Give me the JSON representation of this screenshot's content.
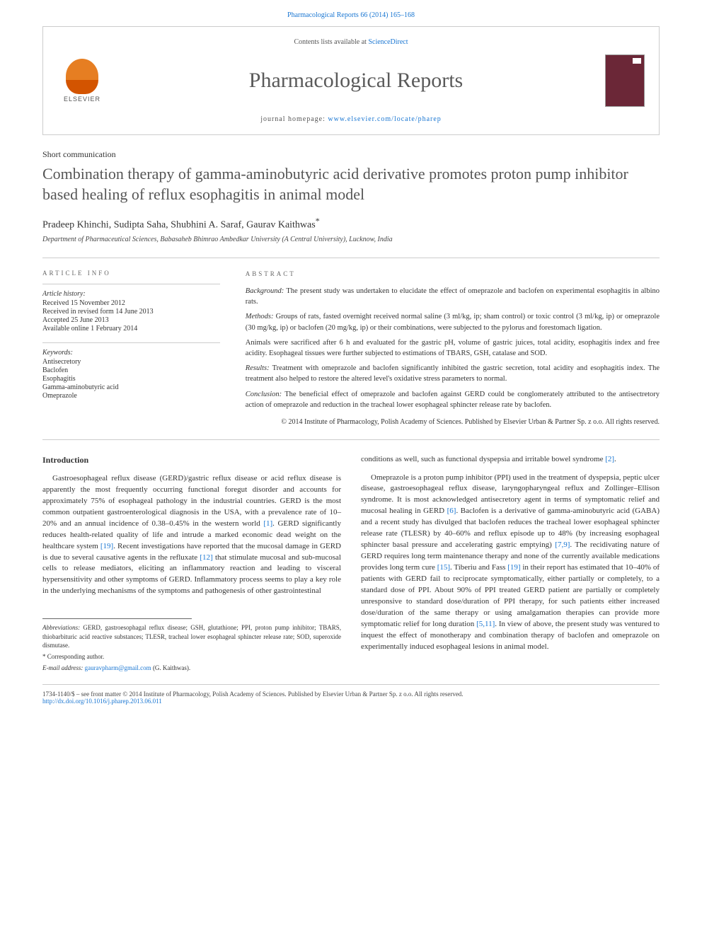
{
  "header": {
    "citation": "Pharmacological Reports 66 (2014) 165–168",
    "contents_line": "Contents lists available at ",
    "contents_link": "ScienceDirect",
    "journal_name": "Pharmacological Reports",
    "homepage_label": "journal homepage: ",
    "homepage_url": "www.elsevier.com/locate/pharep",
    "elsevier": "ELSEVIER"
  },
  "article": {
    "type": "Short communication",
    "title": "Combination therapy of gamma-aminobutyric acid derivative promotes proton pump inhibitor based healing of reflux esophagitis in animal model",
    "authors": "Pradeep Khinchi, Sudipta Saha, Shubhini A. Saraf, Gaurav Kaithwas",
    "corresponding_mark": "*",
    "affiliation": "Department of Pharmaceutical Sciences, Babasaheb Bhimrao Ambedkar University (A Central University), Lucknow, India"
  },
  "info": {
    "section_label": "ARTICLE INFO",
    "history_label": "Article history:",
    "history": [
      "Received 15 November 2012",
      "Received in revised form 14 June 2013",
      "Accepted 25 June 2013",
      "Available online 1 February 2014"
    ],
    "keywords_label": "Keywords:",
    "keywords": [
      "Antisecretory",
      "Baclofen",
      "Esophagitis",
      "Gamma-aminobutyric acid",
      "Omeprazole"
    ]
  },
  "abstract": {
    "section_label": "ABSTRACT",
    "paragraphs": [
      {
        "label": "Background:",
        "text": " The present study was undertaken to elucidate the effect of omeprazole and baclofen on experimental esophagitis in albino rats."
      },
      {
        "label": "Methods:",
        "text": " Groups of rats, fasted overnight received normal saline (3 ml/kg, ip; sham control) or toxic control (3 ml/kg, ip) or omeprazole (30 mg/kg, ip) or baclofen (20 mg/kg, ip) or their combinations, were subjected to the pylorus and forestomach ligation."
      },
      {
        "label": "",
        "text": "Animals were sacrificed after 6 h and evaluated for the gastric pH, volume of gastric juices, total acidity, esophagitis index and free acidity. Esophageal tissues were further subjected to estimations of TBARS, GSH, catalase and SOD."
      },
      {
        "label": "Results:",
        "text": " Treatment with omeprazole and baclofen significantly inhibited the gastric secretion, total acidity and esophagitis index. The treatment also helped to restore the altered level's oxidative stress parameters to normal."
      },
      {
        "label": "Conclusion:",
        "text": " The beneficial effect of omeprazole and baclofen against GERD could be conglomerately attributed to the antisectretory action of omeprazole and reduction in the tracheal lower esophageal sphincter release rate by baclofen."
      }
    ],
    "copyright": "© 2014 Institute of Pharmacology, Polish Academy of Sciences. Published by Elsevier Urban & Partner Sp. z o.o. All rights reserved."
  },
  "body": {
    "intro_heading": "Introduction",
    "col1_p1": "Gastroesophageal reflux disease (GERD)/gastric reflux disease or acid reflux disease is apparently the most frequently occurring functional foregut disorder and accounts for approximately 75% of esophageal pathology in the industrial countries. GERD is the most common outpatient gastroenterological diagnosis in the USA, with a prevalence rate of 10–20% and an annual incidence of 0.38–0.45% in the western world ",
    "ref1": "[1]",
    "col1_p1b": ". GERD significantly reduces health-related quality of life and intrude a marked economic dead weight on the healthcare system ",
    "ref19a": "[19]",
    "col1_p1c": ". Recent investigations have reported that the mucosal damage in GERD is due to several causative agents in the refluxate ",
    "ref12": "[12]",
    "col1_p1d": " that stimulate mucosal and sub-mucosal cells to release mediators, eliciting an inflammatory reaction and leading to visceral hypersensitivity and other symptoms of GERD. Inflammatory process seems to play a key role in the underlying mechanisms of the symptoms and pathogenesis of other gastrointestinal",
    "col2_p1": "conditions as well, such as functional dyspepsia and irritable bowel syndrome ",
    "ref2": "[2]",
    "col2_p1b": ".",
    "col2_p2a": "Omeprazole is a proton pump inhibitor (PPI) used in the treatment of dyspepsia, peptic ulcer disease, gastroesophageal reflux disease, laryngopharyngeal reflux and Zollinger–Ellison syndrome. It is most acknowledged antisecretory agent in terms of symptomatic relief and mucosal healing in GERD ",
    "ref6": "[6]",
    "col2_p2b": ". Baclofen is a derivative of gamma-aminobutyric acid (GABA) and a recent study has divulged that baclofen reduces the tracheal lower esophageal sphincter release rate (TLESR) by 40–60% and reflux episode up to 48% (by increasing esophageal sphincter basal pressure and accelerating gastric emptying) ",
    "ref79": "[7,9]",
    "col2_p2c": ". The recidivating nature of GERD requires long term maintenance therapy and none of the currently available medications provides long term cure ",
    "ref15": "[15]",
    "col2_p2d": ". Tiberiu and Fass ",
    "ref19b": "[19]",
    "col2_p2e": " in their report has estimated that 10–40% of patients with GERD fail to reciprocate symptomatically, either partially or completely, to a standard dose of PPI. About 90% of PPI treated GERD patient are partially or completely unresponsive to standard dose/duration of PPI therapy, for such patients either increased dose/duration of the same therapy or using amalgamation therapies can provide more symptomatic relief for long duration ",
    "ref511": "[5,11]",
    "col2_p2f": ". In view of above, the present study was ventured to inquest the effect of monotherapy and combination therapy of baclofen and omeprazole on experimentally induced esophageal lesions in animal model."
  },
  "footnotes": {
    "abbrev_label": "Abbreviations:",
    "abbrev": " GERD, gastroesophagal reflux disease; GSH, glutathione; PPI, proton pump inhibitor; TBARS, thiobarbituric acid reactive substances; TLESR, tracheal lower esophageal sphincter release rate; SOD, superoxide dismutase.",
    "corr": "Corresponding author.",
    "email_label": "E-mail address:",
    "email": " gauravpharm@gmail.com",
    "email_person": " (G. Kaithwas)."
  },
  "footer": {
    "line1": "1734-1140/$ – see front matter © 2014 Institute of Pharmacology, Polish Academy of Sciences. Published by Elsevier Urban & Partner Sp. z o.o. All rights reserved.",
    "doi": "http://dx.doi.org/10.1016/j.pharep.2013.06.011"
  },
  "colors": {
    "link": "#1976d2",
    "title_gray": "#555555",
    "border": "#cccccc"
  }
}
